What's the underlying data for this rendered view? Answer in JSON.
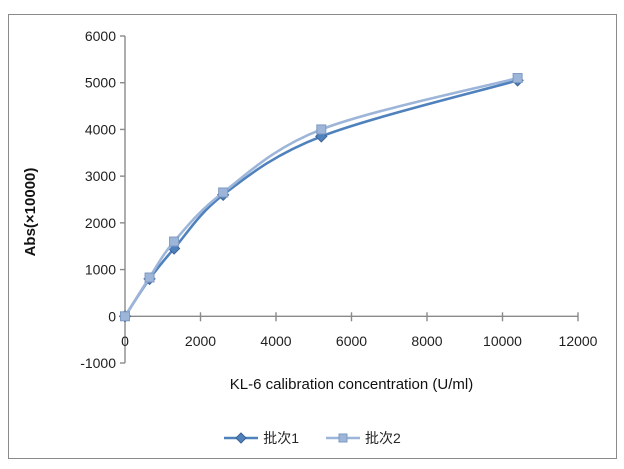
{
  "window": {
    "background_color": "#ffffff",
    "frame_border_color": "#8a8a8a"
  },
  "chart_data": {
    "type": "line",
    "title": "",
    "xlabel": "KL-6 calibration concentration (U/ml)",
    "ylabel": "Abs(×10000)",
    "x": [
      0,
      650,
      1300,
      2600,
      5200,
      10400
    ],
    "series": [
      {
        "name": "批次1",
        "marker": "diamond",
        "color": "#4f81bd",
        "marker_border": "#3b6292",
        "values": [
          0,
          800,
          1450,
          2600,
          3850,
          5050
        ]
      },
      {
        "name": "批次2",
        "marker": "square",
        "color": "#9db5d9",
        "marker_border": "#7e99c2",
        "values": [
          0,
          830,
          1600,
          2650,
          4000,
          5100
        ]
      }
    ],
    "xlim": [
      0,
      12000
    ],
    "ylim": [
      -1000,
      6000
    ],
    "xticks": [
      0,
      2000,
      4000,
      6000,
      8000,
      10000,
      12000
    ],
    "yticks": [
      -1000,
      0,
      1000,
      2000,
      3000,
      4000,
      5000,
      6000
    ],
    "grid": false,
    "smooth_lines": true,
    "axis_color": "#8a8a8a",
    "tick_label_color": "#1f1f1f",
    "legend_position": "bottom"
  }
}
